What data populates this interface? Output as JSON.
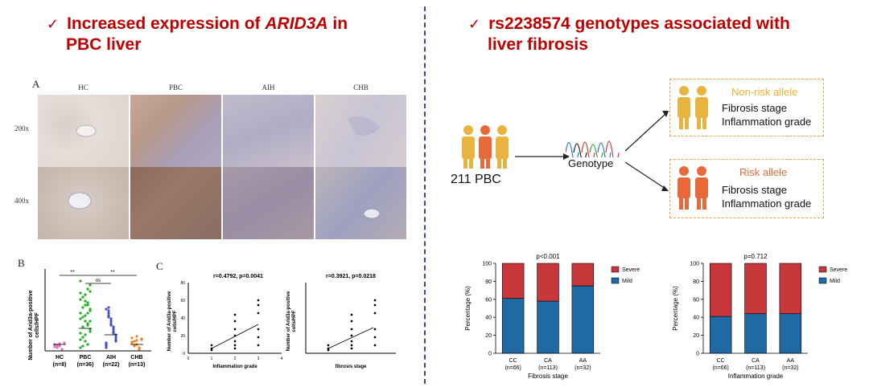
{
  "left": {
    "heading_line1_pre": "Increased expression of ",
    "heading_line1_gene": "ARID3A",
    "heading_line1_post": " in",
    "heading_line2": "PBC liver",
    "check": "✓",
    "panel_a": {
      "letter": "A",
      "columns": [
        "HC",
        "PBC",
        "AIH",
        "CHB"
      ],
      "rows": [
        "200x",
        "400x"
      ]
    },
    "panel_b": {
      "letter": "B",
      "ylabel_line1": "Number of Arid3a-positive",
      "ylabel_line2": "cells/HPF",
      "sig1": "**",
      "sig2": "ns",
      "sig3": "**",
      "groups": [
        {
          "name": "HC",
          "n": "(n=8)",
          "color": "#e070b0"
        },
        {
          "name": "PBC",
          "n": "(n=36)",
          "color": "#22b022"
        },
        {
          "name": "AIH",
          "n": "(n=22)",
          "color": "#4050c8"
        },
        {
          "name": "CHB",
          "n": "(n=13)",
          "color": "#f08020"
        }
      ]
    },
    "panel_c": {
      "letter": "C",
      "left_title": "r=0.4792, p=0.0041",
      "left_xlabel": "Inflammation grade",
      "right_title": "r=0.3921, p=0.0218",
      "right_xlabel": "fibrosis stage",
      "ylabel_line1": "Number of Arid3a-positive",
      "ylabel_line2": "cells/HPF",
      "xticks": [
        "0",
        "1",
        "2",
        "3",
        "4"
      ],
      "yticks": [
        "0",
        "20",
        "40",
        "60",
        "80"
      ]
    }
  },
  "right": {
    "heading_line1": "rs2238574 genotypes associated with",
    "heading_line2": "liver fibrosis",
    "check": "✓",
    "cohort": "211 PBC",
    "genotype": "Genotype",
    "nonrisk": {
      "title": "Non-risk allele",
      "line1": "Fibrosis stage",
      "line2": "Inflammation grade",
      "color": "#f0b030"
    },
    "risk": {
      "title": "Risk allele",
      "line1": "Fibrosis stage",
      "line2": "Inflammation grade",
      "color": "#e86a3a"
    }
  },
  "chart_data": [
    {
      "type": "bar",
      "stacked": true,
      "title": "p<0.001",
      "categories": [
        "CC",
        "CA",
        "AA"
      ],
      "category_n": [
        "(n=66)",
        "(n=113)",
        "(n=32)"
      ],
      "xlabel": "Fibrosis stage",
      "ylabel": "Percentage (%)",
      "ylim": [
        0,
        100
      ],
      "yticks": [
        "0",
        "20",
        "40",
        "60",
        "80",
        "100"
      ],
      "series": [
        {
          "name": "Mild",
          "values": [
            61,
            58,
            75
          ],
          "color": "#1f6aa5"
        },
        {
          "name": "Severe",
          "values": [
            39,
            42,
            25
          ],
          "color": "#c8383a"
        }
      ],
      "legend": "right"
    },
    {
      "type": "bar",
      "stacked": true,
      "title": "p=0.712",
      "categories": [
        "CC",
        "CA",
        "AA"
      ],
      "category_n": [
        "(n=66)",
        "(n=113)",
        "(n=32)"
      ],
      "xlabel": "Inflammation grade",
      "ylabel": "Percentage (%)",
      "ylim": [
        0,
        100
      ],
      "yticks": [
        "0",
        "20",
        "40",
        "60",
        "80",
        "100"
      ],
      "series": [
        {
          "name": "Mild",
          "values": [
            41,
            44,
            44
          ],
          "color": "#1f6aa5"
        },
        {
          "name": "Severe",
          "values": [
            59,
            56,
            56
          ],
          "color": "#c8383a"
        }
      ],
      "legend": "right"
    }
  ]
}
